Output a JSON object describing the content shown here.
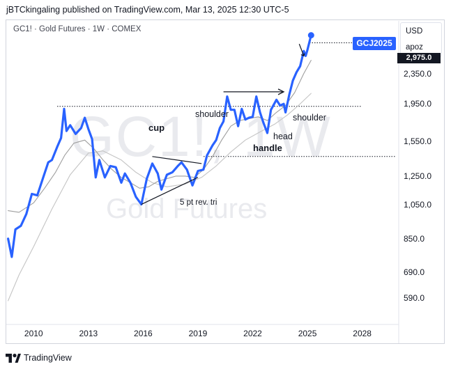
{
  "header": {
    "published": "jBTCkingaling published on TradingView.com, Mar 13, 2025 12:30 UTC-5",
    "symbol_line": "GC1! · Gold Futures · 1W · COMEX"
  },
  "watermark": {
    "symbol": "GC1!, 1W",
    "name": "Gold Futures"
  },
  "price_scale": {
    "currency": "USD",
    "mode": "apoz",
    "price_tag": "GCJ2025",
    "last_tag": "2,975.0"
  },
  "footer": {
    "brand": "TradingView"
  },
  "annotations": {
    "cup": "cup",
    "handle": "handle",
    "shoulder_left": "shoulder",
    "shoulder_right": "shoulder",
    "head": "head",
    "triangle": "5 pt rev. tri"
  },
  "colors": {
    "price_line": "#2962ff",
    "ma_dark": "#9e9e9e",
    "ma_light": "#c4c4c4",
    "price_tag_bg": "#2962ff"
  },
  "chart_data": {
    "type": "line",
    "scale": "log",
    "ylim": [
      510,
      3250
    ],
    "xlim": [
      2008.5,
      2030.0
    ],
    "y_ticks": [
      590.0,
      690.0,
      850.0,
      1050.0,
      1250.0,
      1550.0,
      1950.0,
      2350.0
    ],
    "y_tick_labels": [
      "590.0",
      "690.0",
      "850.0",
      "1,050.0",
      "1,250.0",
      "1,550.0",
      "1,950.0",
      "2,350.0"
    ],
    "x_ticks": [
      2010,
      2013,
      2016,
      2019,
      2022,
      2025,
      2028
    ],
    "x_tick_labels": [
      "2010",
      "2013",
      "2016",
      "2019",
      "2022",
      "2025",
      "2028"
    ],
    "grid": false,
    "series": [
      {
        "points": [
          [
            2008.6,
            850
          ],
          [
            2008.8,
            760
          ],
          [
            2009.0,
            900
          ],
          [
            2009.3,
            920
          ],
          [
            2009.6,
            990
          ],
          [
            2009.9,
            1120
          ],
          [
            2010.2,
            1110
          ],
          [
            2010.5,
            1230
          ],
          [
            2010.8,
            1360
          ],
          [
            2011.0,
            1380
          ],
          [
            2011.3,
            1500
          ],
          [
            2011.5,
            1580
          ],
          [
            2011.67,
            1890
          ],
          [
            2011.8,
            1650
          ],
          [
            2012.0,
            1710
          ],
          [
            2012.3,
            1620
          ],
          [
            2012.6,
            1680
          ],
          [
            2012.8,
            1790
          ],
          [
            2013.0,
            1670
          ],
          [
            2013.2,
            1570
          ],
          [
            2013.4,
            1240
          ],
          [
            2013.6,
            1380
          ],
          [
            2013.9,
            1240
          ],
          [
            2014.2,
            1330
          ],
          [
            2014.5,
            1320
          ],
          [
            2014.8,
            1200
          ],
          [
            2015.0,
            1270
          ],
          [
            2015.3,
            1200
          ],
          [
            2015.6,
            1100
          ],
          [
            2015.9,
            1050
          ],
          [
            2016.2,
            1230
          ],
          [
            2016.5,
            1350
          ],
          [
            2016.8,
            1270
          ],
          [
            2017.0,
            1150
          ],
          [
            2017.3,
            1260
          ],
          [
            2017.6,
            1280
          ],
          [
            2017.9,
            1330
          ],
          [
            2018.1,
            1360
          ],
          [
            2018.4,
            1300
          ],
          [
            2018.7,
            1180
          ],
          [
            2019.0,
            1290
          ],
          [
            2019.3,
            1300
          ],
          [
            2019.5,
            1420
          ],
          [
            2019.8,
            1510
          ],
          [
            2020.0,
            1560
          ],
          [
            2020.2,
            1680
          ],
          [
            2020.4,
            1750
          ],
          [
            2020.6,
            2040
          ],
          [
            2020.8,
            1880
          ],
          [
            2021.0,
            1880
          ],
          [
            2021.2,
            1700
          ],
          [
            2021.4,
            1890
          ],
          [
            2021.6,
            1770
          ],
          [
            2021.8,
            1790
          ],
          [
            2022.0,
            1800
          ],
          [
            2022.2,
            2040
          ],
          [
            2022.4,
            1850
          ],
          [
            2022.6,
            1730
          ],
          [
            2022.8,
            1630
          ],
          [
            2023.0,
            1880
          ],
          [
            2023.3,
            2000
          ],
          [
            2023.5,
            1930
          ],
          [
            2023.7,
            1950
          ],
          [
            2023.8,
            1850
          ],
          [
            2024.0,
            2060
          ],
          [
            2024.2,
            2250
          ],
          [
            2024.4,
            2370
          ],
          [
            2024.6,
            2460
          ],
          [
            2024.8,
            2700
          ],
          [
            2024.9,
            2620
          ],
          [
            2025.0,
            2720
          ],
          [
            2025.2,
            2975
          ]
        ]
      },
      {
        "points": [
          [
            2008.6,
            1010
          ],
          [
            2009.2,
            1000
          ],
          [
            2010.0,
            1060
          ],
          [
            2010.6,
            1160
          ],
          [
            2011.2,
            1280
          ],
          [
            2011.7,
            1420
          ],
          [
            2012.2,
            1530
          ],
          [
            2012.8,
            1560
          ],
          [
            2013.3,
            1480
          ],
          [
            2013.8,
            1380
          ],
          [
            2014.3,
            1300
          ],
          [
            2014.8,
            1240
          ],
          [
            2015.3,
            1200
          ],
          [
            2015.8,
            1160
          ],
          [
            2016.3,
            1170
          ],
          [
            2016.8,
            1210
          ],
          [
            2017.3,
            1230
          ],
          [
            2017.8,
            1250
          ],
          [
            2018.3,
            1250
          ],
          [
            2018.8,
            1240
          ],
          [
            2019.3,
            1300
          ],
          [
            2019.8,
            1410
          ],
          [
            2020.3,
            1560
          ],
          [
            2020.8,
            1700
          ],
          [
            2021.3,
            1760
          ],
          [
            2021.8,
            1780
          ],
          [
            2022.3,
            1800
          ],
          [
            2022.8,
            1760
          ],
          [
            2023.3,
            1850
          ],
          [
            2023.8,
            1930
          ],
          [
            2024.3,
            2090
          ],
          [
            2024.8,
            2350
          ],
          [
            2025.2,
            2550
          ]
        ]
      },
      {
        "points": [
          [
            2008.6,
            580
          ],
          [
            2009.2,
            680
          ],
          [
            2010.0,
            810
          ],
          [
            2011.0,
            1020
          ],
          [
            2012.0,
            1260
          ],
          [
            2013.0,
            1440
          ],
          [
            2013.8,
            1460
          ],
          [
            2014.8,
            1380
          ],
          [
            2015.6,
            1280
          ],
          [
            2016.5,
            1200
          ],
          [
            2017.3,
            1170
          ],
          [
            2018.3,
            1190
          ],
          [
            2019.2,
            1240
          ],
          [
            2020.0,
            1330
          ],
          [
            2020.8,
            1450
          ],
          [
            2021.6,
            1560
          ],
          [
            2022.4,
            1640
          ],
          [
            2023.2,
            1720
          ],
          [
            2023.9,
            1820
          ],
          [
            2024.5,
            1930
          ],
          [
            2025.2,
            2080
          ]
        ]
      }
    ],
    "levels": [
      1920,
      1410,
      2840
    ],
    "trendlines": [
      {
        "from": [
          2015.9,
          1050
        ],
        "to": [
          2019.0,
          1240
        ]
      },
      {
        "from": [
          2016.5,
          1410
        ],
        "to": [
          2019.2,
          1350
        ]
      },
      {
        "from": [
          2020.4,
          2100
        ],
        "to": [
          2023.7,
          2100
        ]
      }
    ]
  }
}
